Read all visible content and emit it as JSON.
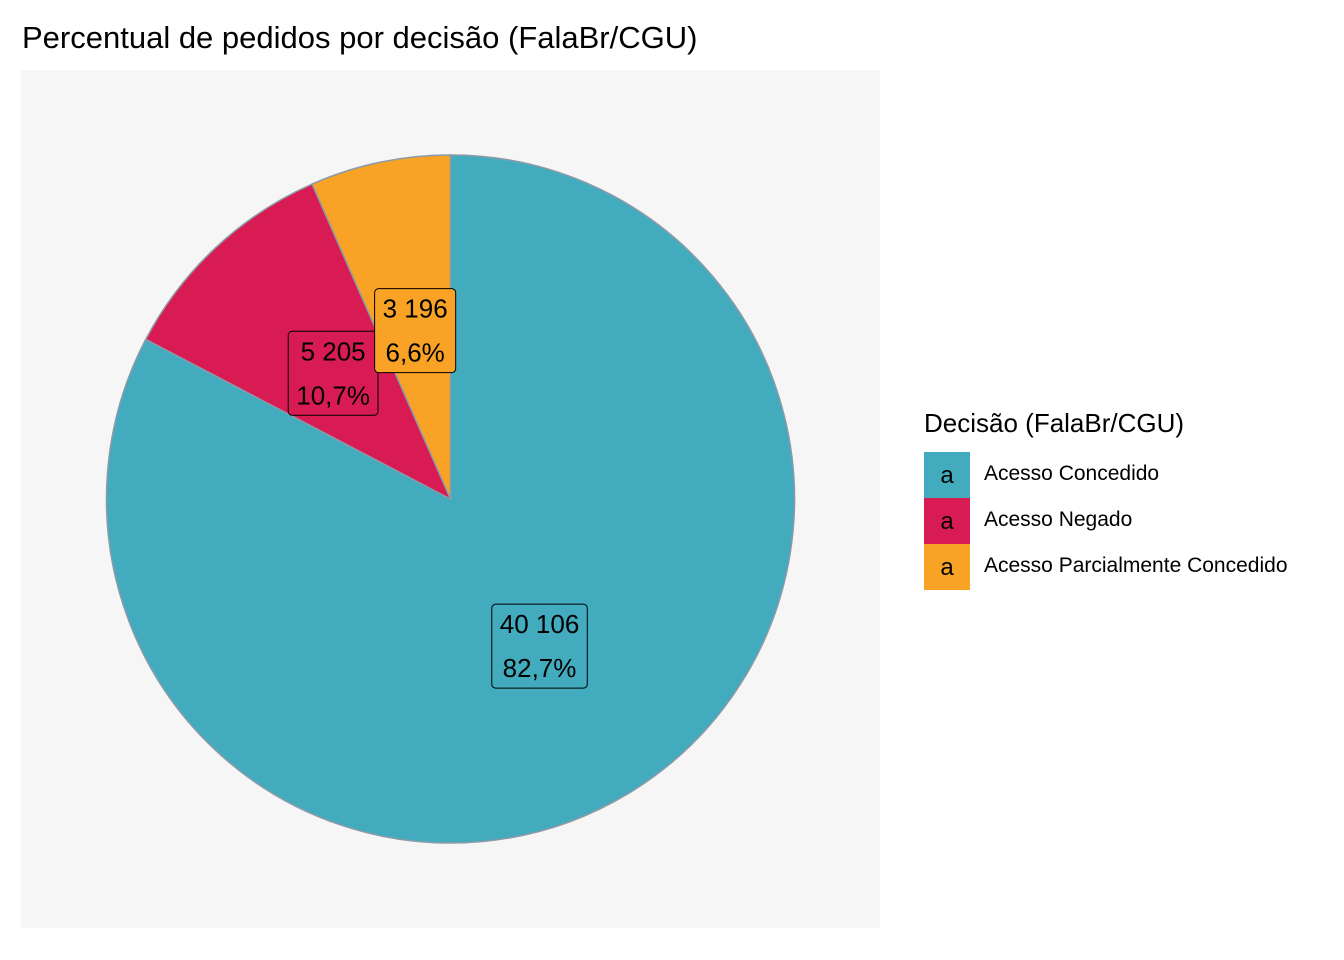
{
  "chart_data": {
    "type": "pie",
    "title": "Percentual de pedidos por decisão (FalaBr/CGU)",
    "legend_title": "Decisão (FalaBr/CGU)",
    "legend_position": "right",
    "legend_key_glyph": "a",
    "categories": [
      "Acesso Concedido",
      "Acesso Negado",
      "Acesso Parcialmente Concedido"
    ],
    "values": [
      40106,
      5205,
      3196
    ],
    "count_labels": [
      "40 106",
      "5 205",
      "3 196"
    ],
    "percent_labels": [
      "82,7%",
      "10,7%",
      "6,6%"
    ],
    "colors": [
      "#43abbe",
      "#d81b53",
      "#f8a326"
    ]
  }
}
